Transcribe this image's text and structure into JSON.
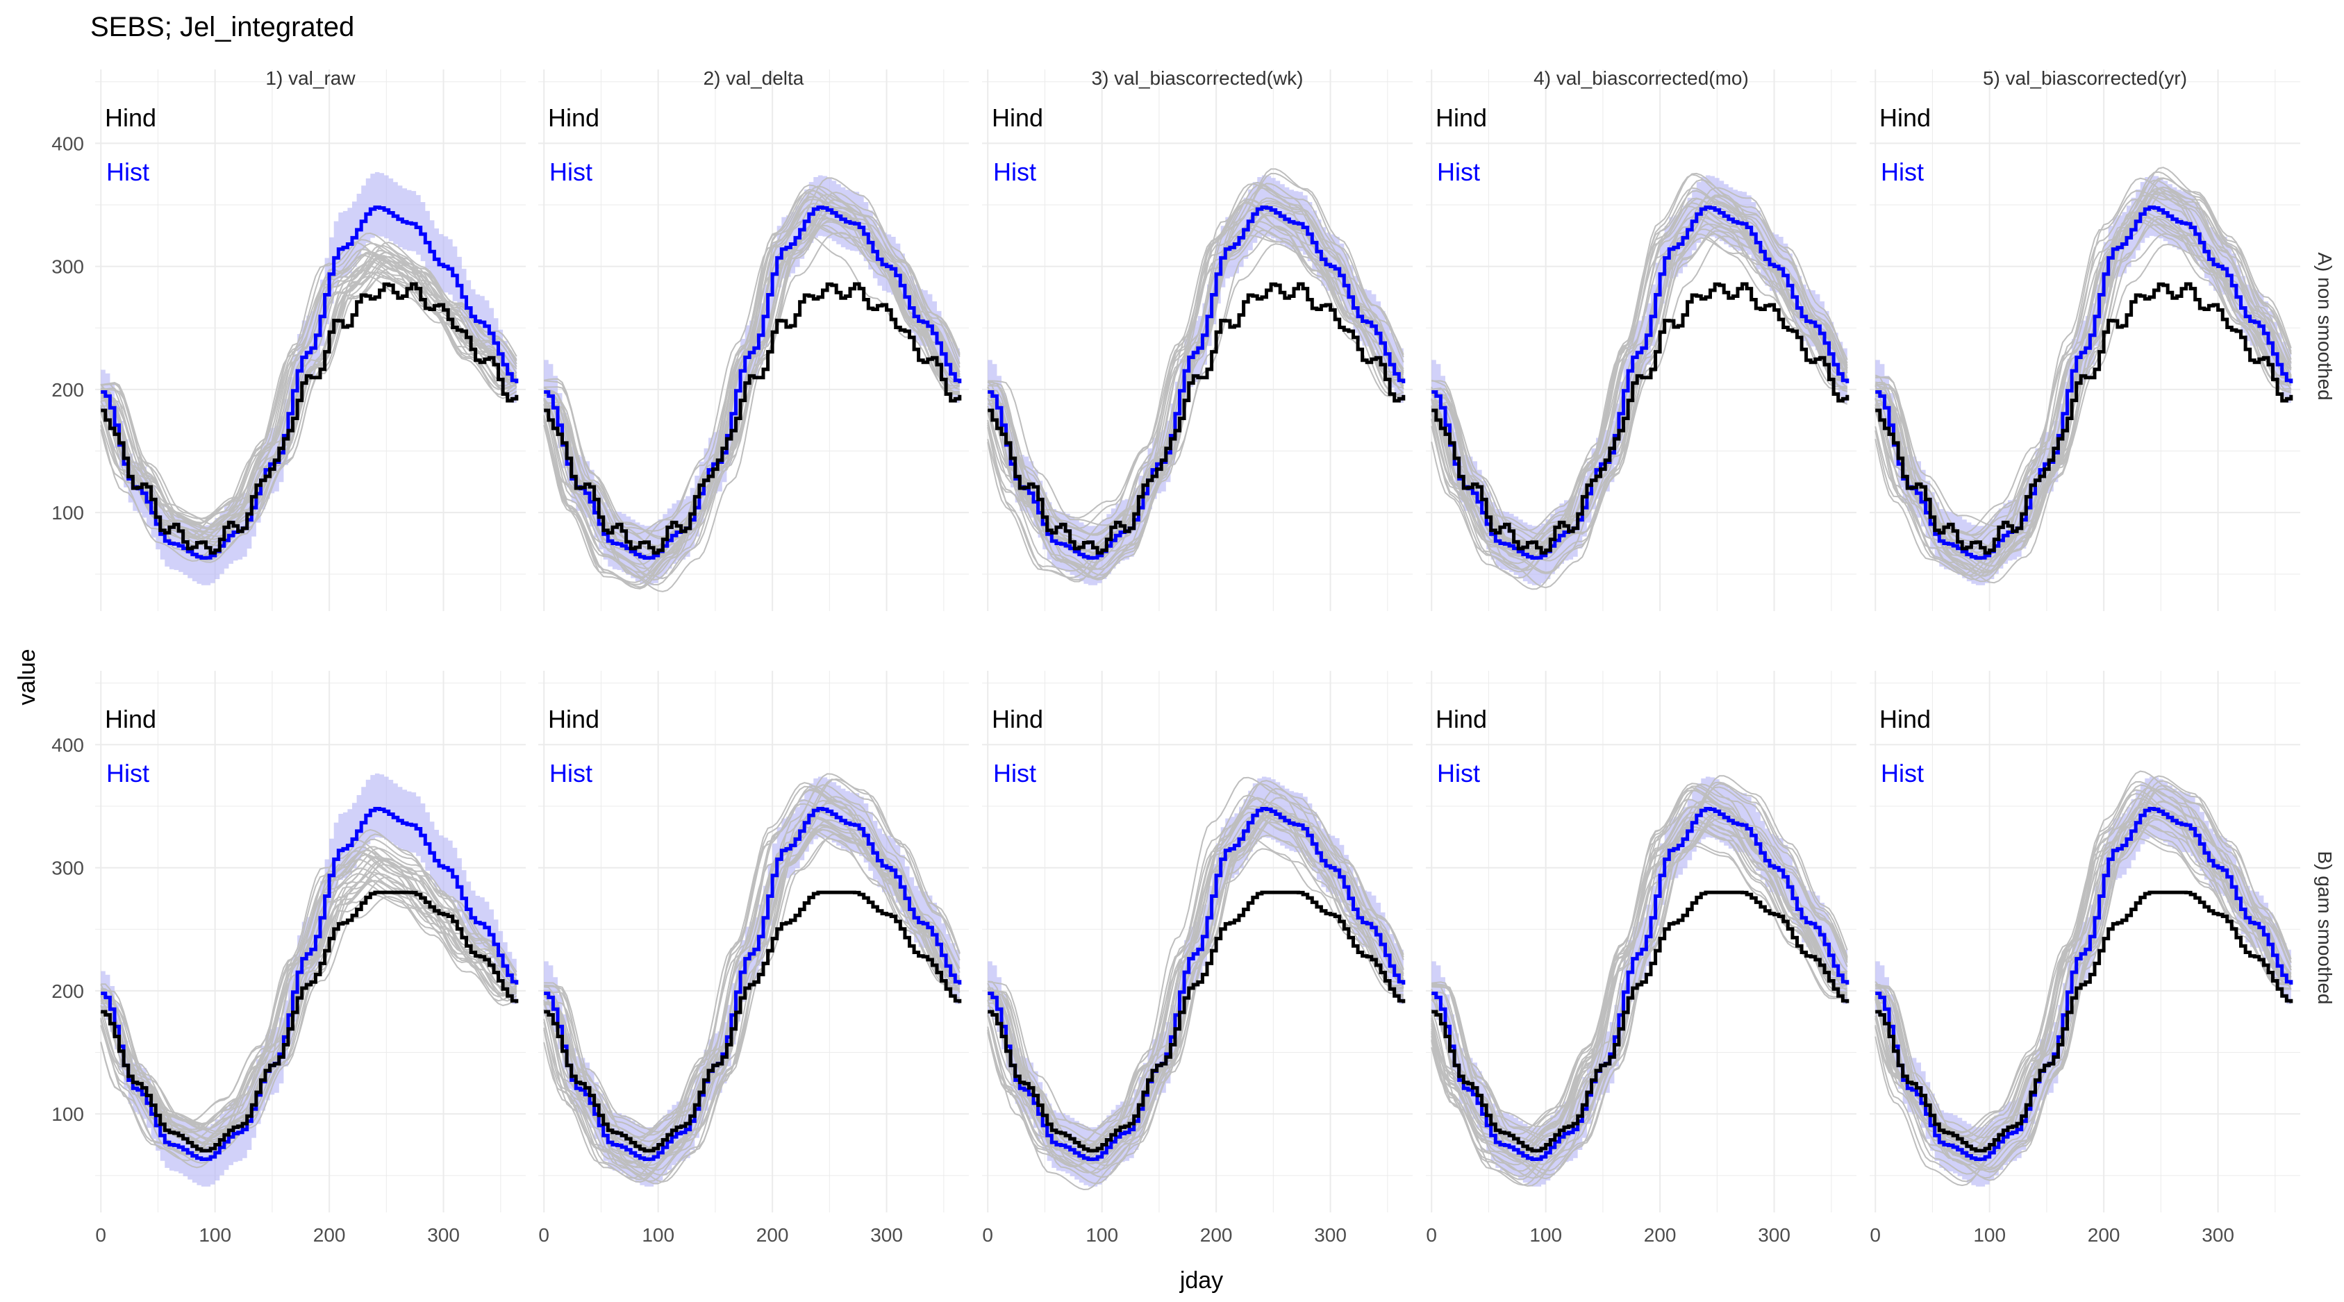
{
  "title": "SEBS; Jel_integrated",
  "xlabel": "jday",
  "ylabel": "value",
  "columns": [
    "1) val_raw",
    "2) val_delta",
    "3) val_biascorrected(wk)",
    "4) val_biascorrected(mo)",
    "5) val_biascorrected(yr)"
  ],
  "rows": [
    "A) non smoothed",
    "B) gam smoothed"
  ],
  "annotations": {
    "hind": "Hind",
    "hist": "Hist"
  },
  "colors": {
    "hind": "#000000",
    "hist": "#0000ff",
    "hist_band": "#b3b3f5",
    "projections": "#bebebe",
    "grid": "#ebebeb",
    "text": "#333333"
  },
  "chart_data": {
    "type": "line",
    "facets": "5 columns x 2 rows",
    "xlim": [
      -5,
      372
    ],
    "ylim": [
      20,
      460
    ],
    "x_ticks": [
      0,
      100,
      200,
      300
    ],
    "y_ticks": [
      100,
      200,
      300,
      400
    ],
    "grid": true,
    "series": [
      {
        "name": "Hind",
        "x": [
          0,
          30,
          60,
          90,
          120,
          150,
          180,
          210,
          240,
          270,
          300,
          330,
          365
        ],
        "values": [
          183,
          125,
          85,
          70,
          90,
          140,
          205,
          255,
          280,
          280,
          262,
          228,
          190
        ]
      },
      {
        "name": "Hist",
        "x": [
          0,
          30,
          60,
          90,
          120,
          150,
          180,
          210,
          240,
          270,
          300,
          330,
          365
        ],
        "values": [
          198,
          120,
          75,
          63,
          85,
          140,
          230,
          315,
          348,
          335,
          300,
          255,
          205
        ]
      }
    ]
  }
}
